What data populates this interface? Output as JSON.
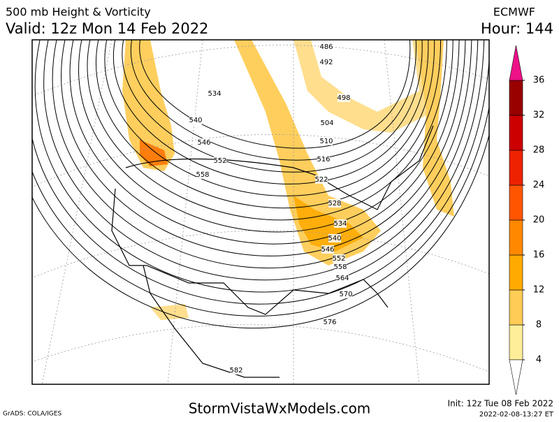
{
  "header": {
    "title": "500 mb Height & Vorticity",
    "valid": "Valid: 12z Mon 14 Feb 2022",
    "model": "ECMWF",
    "hour": "Hour: 144"
  },
  "contour_labels": [
    "486",
    "492",
    "498",
    "504",
    "510",
    "516",
    "522",
    "528",
    "534",
    "540",
    "546",
    "552",
    "558",
    "564",
    "570",
    "576",
    "582",
    "534",
    "540",
    "546",
    "552",
    "558"
  ],
  "colorbar": {
    "ticks": [
      4,
      8,
      12,
      16,
      20,
      24,
      28,
      32,
      36
    ],
    "colors": [
      "#ffee99",
      "#ffcc55",
      "#ffaa00",
      "#ff8800",
      "#ff5500",
      "#ee2200",
      "#cc0000",
      "#990000"
    ],
    "over_color": "#ee1188"
  },
  "footer": {
    "credit": "GrADS: COLA/IGES",
    "site": "StormVistaWxModels.com",
    "init": "Init: 12z Tue 08 Feb 2022",
    "stamp": "2022-02-08-13:27 ET"
  }
}
